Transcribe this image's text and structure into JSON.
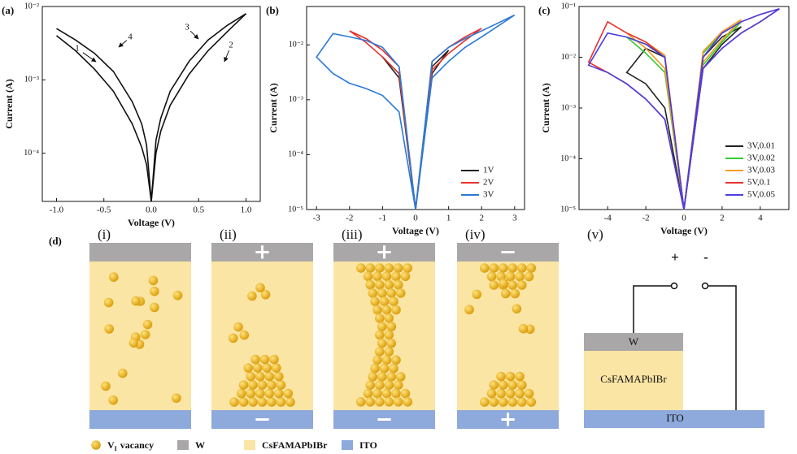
{
  "chart_data": [
    {
      "type": "line",
      "label": "(a)",
      "xlabel": "Voltage (V)",
      "ylabel": "Current (A)",
      "yscale": "log",
      "xlim": [
        -1.15,
        1.15
      ],
      "ylim": [
        2.2e-05,
        0.01
      ],
      "xticks": [
        {
          "value": -1,
          "label": "-1.0"
        },
        {
          "value": -0.5,
          "label": "-0.5"
        },
        {
          "value": 0,
          "label": "0.0"
        },
        {
          "value": 0.5,
          "label": "0.5"
        },
        {
          "value": 1,
          "label": "1.0"
        }
      ],
      "yticks": [
        {
          "value": 0.0001,
          "label": "10⁻⁴"
        },
        {
          "value": 0.001,
          "label": "10⁻³"
        },
        {
          "value": 0.01,
          "label": "10⁻²"
        }
      ],
      "annotations": [
        "1",
        "2",
        "3",
        "4"
      ],
      "series": [
        {
          "color": "#111111",
          "x": [
            -1,
            -0.8,
            -0.6,
            -0.4,
            -0.2,
            -0.1,
            -0.05,
            0,
            0.05,
            0.1,
            0.2,
            0.4,
            0.6,
            0.8,
            1
          ],
          "values": [
            0.005,
            0.0035,
            0.0023,
            0.0013,
            0.0005,
            0.00025,
            0.00013,
            2.2e-05,
            0.00015,
            0.0003,
            0.0007,
            0.0018,
            0.0035,
            0.0055,
            0.008
          ]
        },
        {
          "color": "#111111",
          "x": [
            -1,
            -0.8,
            -0.6,
            -0.4,
            -0.2,
            -0.1,
            -0.05,
            0,
            0.05,
            0.1,
            0.2,
            0.4,
            0.6,
            0.8,
            1
          ],
          "values": [
            0.004,
            0.0025,
            0.0014,
            0.0007,
            0.00025,
            0.00012,
            7e-05,
            2.2e-05,
            0.0001,
            0.0002,
            0.00045,
            0.0012,
            0.0025,
            0.0045,
            0.008
          ]
        }
      ]
    },
    {
      "type": "line",
      "label": "(b)",
      "xlabel": "Voltage (V)",
      "ylabel": "Current (A)",
      "yscale": "log",
      "xlim": [
        -3.3,
        3.3
      ],
      "ylim": [
        1e-05,
        0.05
      ],
      "xticks": [
        -3,
        -2,
        -1,
        0,
        1,
        2,
        3
      ],
      "yticks": [
        {
          "value": 1e-05,
          "label": "10⁻⁵"
        },
        {
          "value": 0.0001,
          "label": "10⁻⁴"
        },
        {
          "value": 0.001,
          "label": "10⁻³"
        },
        {
          "value": 0.01,
          "label": "10⁻²"
        }
      ],
      "legend": "lower right",
      "series": [
        {
          "name": "1V",
          "color": "#222222",
          "x": [
            0,
            0.5,
            1,
            0.5,
            0,
            -0.5,
            -1,
            -0.5,
            0
          ],
          "values": [
            1e-05,
            0.004,
            0.008,
            0.003,
            1e-05,
            0.003,
            0.006,
            0.0025,
            1e-05
          ]
        },
        {
          "name": "2V",
          "color": "#e8312f",
          "x": [
            0,
            0.5,
            1,
            1.5,
            2,
            1.5,
            1,
            0.5,
            0,
            -0.5,
            -1,
            -1.5,
            -2,
            -1.5,
            -1,
            -0.5,
            0
          ],
          "values": [
            1e-05,
            0.005,
            0.009,
            0.014,
            0.02,
            0.012,
            0.007,
            0.0035,
            1e-05,
            0.004,
            0.008,
            0.013,
            0.018,
            0.011,
            0.006,
            0.003,
            1e-05
          ]
        },
        {
          "name": "3V",
          "color": "#2a7ad5",
          "x": [
            0,
            0.5,
            1,
            1.5,
            2,
            2.5,
            3,
            2.5,
            2,
            1.5,
            1,
            0.5,
            0,
            -0.5,
            -1,
            -1.5,
            -2,
            -2.5,
            -3,
            -2.5,
            -2,
            -1.5,
            -1,
            -0.5,
            0
          ],
          "values": [
            1e-05,
            0.005,
            0.009,
            0.013,
            0.018,
            0.025,
            0.035,
            0.022,
            0.014,
            0.009,
            0.005,
            0.0025,
            1e-05,
            0.004,
            0.009,
            0.012,
            0.014,
            0.016,
            0.006,
            0.003,
            0.002,
            0.0016,
            0.0012,
            0.0006,
            1e-05
          ]
        }
      ]
    },
    {
      "type": "line",
      "label": "(c)",
      "xlabel": "Voltage (V)",
      "ylabel": "Current (A)",
      "yscale": "log",
      "xlim": [
        -5.5,
        5.5
      ],
      "ylim": [
        1e-05,
        0.1
      ],
      "xticks": [
        -4,
        -2,
        0,
        2,
        4
      ],
      "yticks": [
        {
          "value": 1e-05,
          "label": "10⁻⁵"
        },
        {
          "value": 0.0001,
          "label": "10⁻⁴"
        },
        {
          "value": 0.001,
          "label": "10⁻³"
        },
        {
          "value": 0.01,
          "label": "10⁻²"
        },
        {
          "value": 0.1,
          "label": "10⁻¹"
        }
      ],
      "legend": "lower right",
      "series": [
        {
          "name": "3V,0.01",
          "color": "#222222",
          "x": [
            0,
            1,
            2,
            3,
            2,
            1,
            0,
            -1,
            -2,
            -3,
            -2,
            -1,
            0
          ],
          "values": [
            1e-05,
            0.01,
            0.025,
            0.04,
            0.018,
            0.006,
            1e-05,
            0.01,
            0.015,
            0.005,
            0.003,
            0.001,
            1e-05
          ]
        },
        {
          "name": "3V,0.02",
          "color": "#33cc33",
          "x": [
            0,
            1,
            2,
            3,
            2,
            1,
            0,
            -1,
            -2,
            -3,
            -2,
            -1,
            0
          ],
          "values": [
            1e-05,
            0.012,
            0.03,
            0.05,
            0.02,
            0.007,
            1e-05,
            0.01,
            0.018,
            0.025,
            0.012,
            0.005,
            1e-05
          ]
        },
        {
          "name": "3V,0.03",
          "color": "#f39c1f",
          "x": [
            0,
            1,
            2,
            3,
            2,
            1,
            0,
            -1,
            -2,
            -3,
            -2,
            -1,
            0
          ],
          "values": [
            1e-05,
            0.013,
            0.032,
            0.055,
            0.022,
            0.008,
            1e-05,
            0.011,
            0.02,
            0.03,
            0.015,
            0.006,
            1e-05
          ]
        },
        {
          "name": "5V,0.1",
          "color": "#e8312f",
          "x": [
            0,
            1,
            2,
            3,
            4,
            5,
            4,
            3,
            2,
            1,
            0,
            -1,
            -2,
            -3,
            -4,
            -5,
            -4,
            -3,
            -2,
            -1,
            0
          ],
          "values": [
            1e-05,
            0.01,
            0.03,
            0.05,
            0.07,
            0.09,
            0.05,
            0.03,
            0.015,
            0.006,
            1e-05,
            0.01,
            0.02,
            0.03,
            0.05,
            0.008,
            0.005,
            0.003,
            0.0015,
            0.0006,
            1e-05
          ]
        },
        {
          "name": "5V,0.05",
          "color": "#4b3ee0",
          "x": [
            0,
            1,
            2,
            3,
            4,
            5,
            4,
            3,
            2,
            1,
            0,
            -1,
            -2,
            -3,
            -4,
            -5,
            -4,
            -3,
            -2,
            -1,
            0
          ],
          "values": [
            1e-05,
            0.01,
            0.03,
            0.05,
            0.07,
            0.09,
            0.05,
            0.03,
            0.015,
            0.006,
            1e-05,
            0.01,
            0.018,
            0.025,
            0.03,
            0.007,
            0.005,
            0.003,
            0.0015,
            0.0006,
            1e-05
          ]
        }
      ]
    }
  ],
  "diagram": {
    "label": "(d)",
    "panels": [
      {
        "label": "(i)"
      },
      {
        "label": "(ii)",
        "top": "+",
        "bottom": "−"
      },
      {
        "label": "(iii)",
        "top": "+",
        "bottom": "−"
      },
      {
        "label": "(iv)",
        "top": "−",
        "bottom": "+"
      }
    ],
    "circuit": {
      "label": "(v)",
      "plus": "+",
      "minus": "-",
      "electrode": "W",
      "layer": "CsFAMAPbIBr",
      "substrate": "ITO"
    },
    "legend": [
      {
        "symbol": "V",
        "subscript": "I",
        "label": "vacancy"
      },
      {
        "label": "W"
      },
      {
        "label": "CsFAMAPbIBr"
      },
      {
        "label": "ITO"
      }
    ]
  }
}
